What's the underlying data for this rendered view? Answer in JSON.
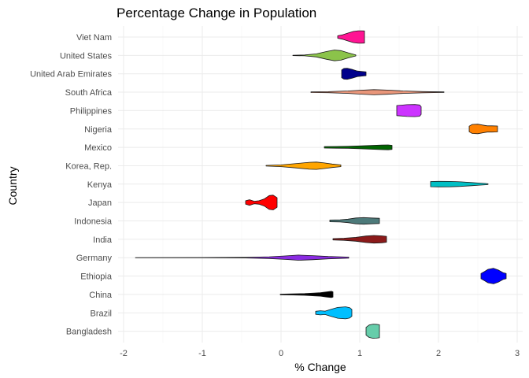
{
  "chart_data": {
    "type": "violin",
    "title": "Percentage Change in Population",
    "xlabel": "% Change",
    "ylabel": "Country",
    "xlim": [
      -2.1,
      3.05
    ],
    "x_ticks": [
      -2,
      -1,
      0,
      1,
      2,
      3
    ],
    "x_tick_labels": [
      "-2",
      "-1",
      "0",
      "1",
      "2",
      "3"
    ],
    "grid": true,
    "legend": "none",
    "series": [
      {
        "category": "Viet Nam",
        "color": "#ff1493",
        "min": 0.72,
        "max": 1.06,
        "profile": [
          [
            0.72,
            0.15
          ],
          [
            0.78,
            0.25
          ],
          [
            0.85,
            0.45
          ],
          [
            0.92,
            0.65
          ],
          [
            0.98,
            0.72
          ],
          [
            1.02,
            0.72
          ],
          [
            1.06,
            0.7
          ]
        ]
      },
      {
        "category": "United States",
        "color": "#8bc34a",
        "min": 0.15,
        "max": 0.95,
        "profile": [
          [
            0.15,
            0.02
          ],
          [
            0.3,
            0.05
          ],
          [
            0.45,
            0.18
          ],
          [
            0.58,
            0.45
          ],
          [
            0.68,
            0.62
          ],
          [
            0.76,
            0.55
          ],
          [
            0.85,
            0.3
          ],
          [
            0.95,
            0.06
          ]
        ]
      },
      {
        "category": "United Arab Emirates",
        "color": "#00008b",
        "min": 0.77,
        "max": 1.08,
        "profile": [
          [
            0.77,
            0.45
          ],
          [
            0.8,
            0.62
          ],
          [
            0.84,
            0.64
          ],
          [
            0.9,
            0.52
          ],
          [
            0.97,
            0.32
          ],
          [
            1.03,
            0.26
          ],
          [
            1.08,
            0.22
          ]
        ]
      },
      {
        "category": "South Africa",
        "color": "#e9967a",
        "min": 0.38,
        "max": 2.07,
        "profile": [
          [
            0.38,
            0.04
          ],
          [
            0.6,
            0.06
          ],
          [
            0.85,
            0.14
          ],
          [
            1.0,
            0.22
          ],
          [
            1.18,
            0.3
          ],
          [
            1.35,
            0.24
          ],
          [
            1.55,
            0.14
          ],
          [
            1.8,
            0.07
          ],
          [
            2.07,
            0.03
          ]
        ]
      },
      {
        "category": "Philippines",
        "color": "#cc33ff",
        "min": 1.47,
        "max": 1.78,
        "profile": [
          [
            1.47,
            0.58
          ],
          [
            1.52,
            0.62
          ],
          [
            1.6,
            0.68
          ],
          [
            1.7,
            0.7
          ],
          [
            1.76,
            0.65
          ],
          [
            1.78,
            0.45
          ]
        ]
      },
      {
        "category": "Nigeria",
        "color": "#ff8000",
        "min": 2.39,
        "max": 2.75,
        "profile": [
          [
            2.39,
            0.32
          ],
          [
            2.43,
            0.52
          ],
          [
            2.5,
            0.55
          ],
          [
            2.56,
            0.45
          ],
          [
            2.62,
            0.36
          ],
          [
            2.68,
            0.36
          ],
          [
            2.75,
            0.34
          ]
        ]
      },
      {
        "category": "Mexico",
        "color": "#006400",
        "min": 0.55,
        "max": 1.41,
        "profile": [
          [
            0.55,
            0.08
          ],
          [
            0.7,
            0.1
          ],
          [
            0.85,
            0.12
          ],
          [
            1.0,
            0.16
          ],
          [
            1.15,
            0.22
          ],
          [
            1.28,
            0.26
          ],
          [
            1.36,
            0.28
          ],
          [
            1.41,
            0.24
          ]
        ]
      },
      {
        "category": "Korea, Rep.",
        "color": "#ffa500",
        "min": -0.19,
        "max": 0.76,
        "profile": [
          [
            -0.19,
            0.04
          ],
          [
            0.0,
            0.1
          ],
          [
            0.2,
            0.26
          ],
          [
            0.36,
            0.4
          ],
          [
            0.45,
            0.42
          ],
          [
            0.55,
            0.32
          ],
          [
            0.65,
            0.2
          ],
          [
            0.76,
            0.1
          ]
        ]
      },
      {
        "category": "Kenya",
        "color": "#00bfc4",
        "min": 1.9,
        "max": 2.63,
        "profile": [
          [
            1.9,
            0.3
          ],
          [
            2.0,
            0.32
          ],
          [
            2.15,
            0.31
          ],
          [
            2.28,
            0.26
          ],
          [
            2.42,
            0.18
          ],
          [
            2.52,
            0.12
          ],
          [
            2.6,
            0.07
          ],
          [
            2.63,
            0.04
          ]
        ]
      },
      {
        "category": "Japan",
        "color": "#ff0000",
        "min": -0.45,
        "max": -0.05,
        "profile": [
          [
            -0.45,
            0.2
          ],
          [
            -0.4,
            0.32
          ],
          [
            -0.34,
            0.14
          ],
          [
            -0.28,
            0.2
          ],
          [
            -0.21,
            0.42
          ],
          [
            -0.15,
            0.8
          ],
          [
            -0.1,
            0.85
          ],
          [
            -0.05,
            0.55
          ]
        ]
      },
      {
        "category": "Indonesia",
        "color": "#4d7a7a",
        "min": 0.62,
        "max": 1.25,
        "profile": [
          [
            0.62,
            0.1
          ],
          [
            0.75,
            0.13
          ],
          [
            0.85,
            0.2
          ],
          [
            0.95,
            0.34
          ],
          [
            1.05,
            0.38
          ],
          [
            1.15,
            0.34
          ],
          [
            1.25,
            0.3
          ]
        ]
      },
      {
        "category": "India",
        "color": "#8b1a1a",
        "min": 0.66,
        "max": 1.34,
        "profile": [
          [
            0.66,
            0.08
          ],
          [
            0.8,
            0.12
          ],
          [
            0.95,
            0.22
          ],
          [
            1.08,
            0.38
          ],
          [
            1.18,
            0.44
          ],
          [
            1.28,
            0.4
          ],
          [
            1.34,
            0.34
          ]
        ]
      },
      {
        "category": "Germany",
        "color": "#8a2be2",
        "min": -1.85,
        "max": 0.86,
        "profile": [
          [
            -1.85,
            0.01
          ],
          [
            -1.0,
            0.02
          ],
          [
            -0.45,
            0.04
          ],
          [
            -0.15,
            0.1
          ],
          [
            0.05,
            0.2
          ],
          [
            0.22,
            0.3
          ],
          [
            0.4,
            0.24
          ],
          [
            0.6,
            0.14
          ],
          [
            0.86,
            0.06
          ]
        ]
      },
      {
        "category": "Ethiopia",
        "color": "#0000ff",
        "min": 2.54,
        "max": 2.86,
        "profile": [
          [
            2.54,
            0.3
          ],
          [
            2.58,
            0.5
          ],
          [
            2.63,
            0.78
          ],
          [
            2.7,
            0.9
          ],
          [
            2.76,
            0.7
          ],
          [
            2.82,
            0.4
          ],
          [
            2.86,
            0.3
          ]
        ]
      },
      {
        "category": "China",
        "color": "#000000",
        "min": -0.01,
        "max": 0.66,
        "profile": [
          [
            -0.01,
            0.04
          ],
          [
            0.15,
            0.06
          ],
          [
            0.3,
            0.1
          ],
          [
            0.42,
            0.16
          ],
          [
            0.5,
            0.2
          ],
          [
            0.58,
            0.3
          ],
          [
            0.64,
            0.36
          ],
          [
            0.66,
            0.3
          ]
        ]
      },
      {
        "category": "Brazil",
        "color": "#00bfff",
        "min": 0.44,
        "max": 0.9,
        "profile": [
          [
            0.44,
            0.18
          ],
          [
            0.5,
            0.24
          ],
          [
            0.56,
            0.2
          ],
          [
            0.62,
            0.36
          ],
          [
            0.72,
            0.62
          ],
          [
            0.82,
            0.7
          ],
          [
            0.87,
            0.6
          ],
          [
            0.9,
            0.4
          ]
        ]
      },
      {
        "category": "Bangladesh",
        "color": "#66cdaa",
        "min": 1.08,
        "max": 1.25,
        "profile": [
          [
            1.08,
            0.45
          ],
          [
            1.12,
            0.72
          ],
          [
            1.17,
            0.82
          ],
          [
            1.21,
            0.8
          ],
          [
            1.25,
            0.75
          ]
        ]
      }
    ]
  }
}
